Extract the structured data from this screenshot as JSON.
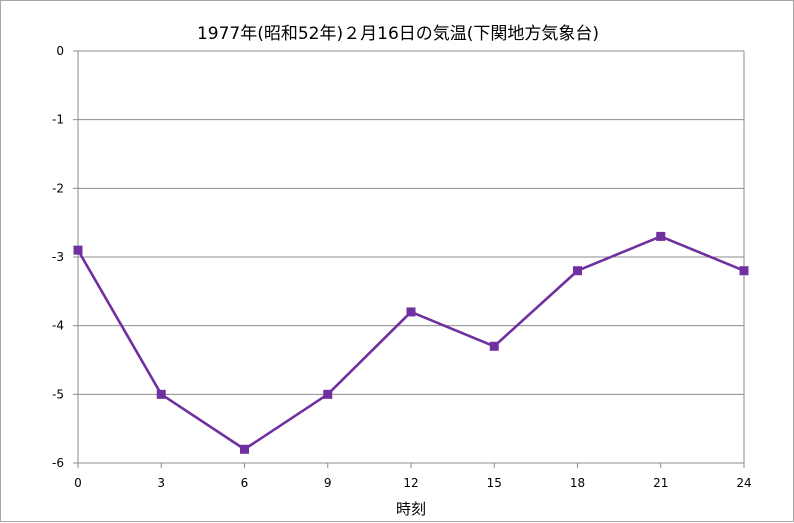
{
  "chart_data": {
    "type": "line",
    "title": "1977年(昭和52年)２月16日の気温(下関地方気象台)",
    "xlabel": "時刻",
    "ylabel": "",
    "x": [
      0,
      3,
      6,
      9,
      12,
      15,
      18,
      21,
      24
    ],
    "x_tick_labels": [
      "0",
      "3",
      "6",
      "9",
      "12",
      "15",
      "18",
      "21",
      "24"
    ],
    "y_tick_labels": [
      "0",
      "-1",
      "-2",
      "-3",
      "-4",
      "-5",
      "-6"
    ],
    "y_ticks": [
      0,
      -1,
      -2,
      -3,
      -4,
      -5,
      -6
    ],
    "xlim": [
      0,
      24
    ],
    "ylim": [
      -6,
      0
    ],
    "grid": true,
    "legend": "none",
    "series": [
      {
        "values": [
          -2.9,
          -5.0,
          -5.8,
          -5.0,
          -3.8,
          -4.3,
          -3.2,
          -2.7,
          -3.2
        ],
        "color": "#7030a0",
        "marker": "square"
      }
    ]
  }
}
